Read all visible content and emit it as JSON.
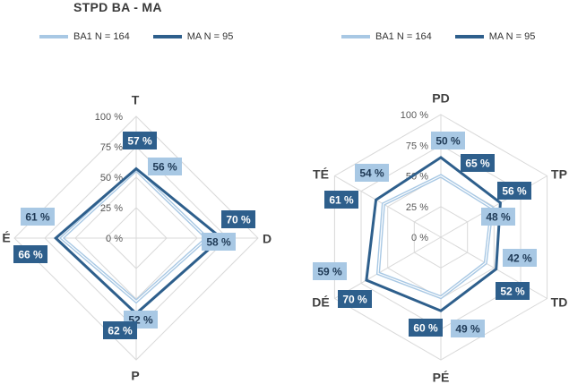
{
  "title": "STPD BA - MA",
  "colors": {
    "ba1": "#a8c8e4",
    "ma": "#2e5f8c",
    "grid": "#d9d9d9",
    "labelText": "#222222"
  },
  "chart_data": [
    {
      "type": "radar",
      "title": "STPD BA - MA",
      "axes": [
        "T",
        "D",
        "P",
        "É"
      ],
      "ticks": [
        "0 %",
        "25 %",
        "50 %",
        "75 %",
        "100 %"
      ],
      "range": [
        0,
        100
      ],
      "series": [
        {
          "name": "BA1 N = 164",
          "values": [
            56,
            58,
            52,
            61
          ],
          "labels": [
            "56 %",
            "58 %",
            "52 %",
            "61 %"
          ]
        },
        {
          "name": "MA N = 95",
          "values": [
            57,
            70,
            62,
            66
          ],
          "labels": [
            "57 %",
            "70 %",
            "62 %",
            "66 %"
          ]
        }
      ],
      "legend": "top"
    },
    {
      "type": "radar",
      "axes": [
        "PD",
        "TP",
        "TD",
        "PÉ",
        "DÉ",
        "TÉ"
      ],
      "ticks": [
        "0 %",
        "25 %",
        "50 %",
        "75 %",
        "100 %"
      ],
      "range": [
        0,
        100
      ],
      "series": [
        {
          "name": "BA1 N = 164",
          "values": [
            50,
            48,
            42,
            49,
            59,
            54
          ],
          "labels": [
            "50 %",
            "48 %",
            "42 %",
            "49 %",
            "59 %",
            "54 %"
          ]
        },
        {
          "name": "MA N = 95",
          "values": [
            65,
            56,
            52,
            60,
            70,
            61
          ],
          "labels": [
            "65 %",
            "56 %",
            "52 %",
            "60 %",
            "70 %",
            "61 %"
          ]
        }
      ],
      "legend": "top"
    }
  ]
}
